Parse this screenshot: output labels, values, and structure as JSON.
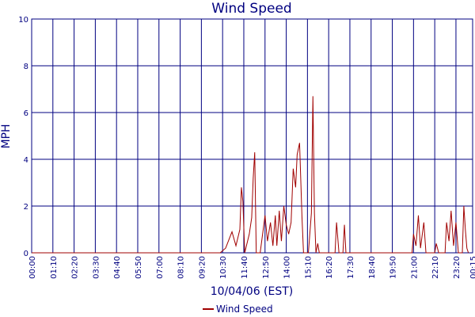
{
  "chart_data": {
    "type": "line",
    "title": "Wind Speed",
    "x_label": "10/04/06 (EST)",
    "y_label": "MPH",
    "x": [
      0,
      622,
      640,
      661,
      674,
      687,
      692,
      697,
      703,
      718,
      726,
      731,
      736,
      741,
      754,
      770,
      778,
      788,
      796,
      804,
      809,
      817,
      824,
      832,
      840,
      848,
      856,
      863,
      871,
      876,
      884,
      892,
      897,
      913,
      923,
      928,
      933,
      938,
      944,
      949,
      1001,
      1006,
      1014,
      1027,
      1032,
      1037,
      1255,
      1260,
      1268,
      1276,
      1283,
      1294,
      1301,
      1330,
      1335,
      1343,
      1364,
      1369,
      1377,
      1384,
      1392,
      1400,
      1408,
      1421,
      1426,
      1431,
      1436,
      1441
    ],
    "series": [
      {
        "name": "Wind Speed",
        "color": "#a00000",
        "values": [
          0,
          0,
          0.2,
          0.9,
          0.3,
          1.0,
          2.8,
          2.2,
          0,
          0.8,
          1.5,
          3.2,
          4.3,
          0,
          0,
          1.6,
          0.5,
          1.3,
          0.3,
          1.6,
          0.3,
          1.8,
          0.5,
          2.0,
          1.2,
          0.8,
          1.3,
          3.6,
          2.8,
          4.2,
          4.7,
          1.5,
          0,
          0,
          1.7,
          6.7,
          1.7,
          0,
          0.4,
          0,
          0,
          1.3,
          0,
          0,
          1.2,
          0,
          0,
          0.8,
          0.3,
          1.6,
          0.2,
          1.3,
          0,
          0,
          0.4,
          0,
          0,
          1.3,
          0.5,
          1.8,
          0.3,
          1.3,
          0,
          0,
          2.0,
          1.0,
          0.2,
          0
        ]
      }
    ],
    "xlim": [
      0,
      1455
    ],
    "xticks": [
      {
        "value": 0,
        "label": "00:00"
      },
      {
        "value": 70,
        "label": "01:10"
      },
      {
        "value": 140,
        "label": "02:20"
      },
      {
        "value": 210,
        "label": "03:30"
      },
      {
        "value": 280,
        "label": "04:40"
      },
      {
        "value": 350,
        "label": "05:50"
      },
      {
        "value": 420,
        "label": "07:00"
      },
      {
        "value": 490,
        "label": "08:10"
      },
      {
        "value": 560,
        "label": "09:20"
      },
      {
        "value": 630,
        "label": "10:30"
      },
      {
        "value": 700,
        "label": "11:40"
      },
      {
        "value": 770,
        "label": "12:50"
      },
      {
        "value": 840,
        "label": "14:00"
      },
      {
        "value": 910,
        "label": "15:10"
      },
      {
        "value": 980,
        "label": "16:20"
      },
      {
        "value": 1050,
        "label": "17:30"
      },
      {
        "value": 1120,
        "label": "18:40"
      },
      {
        "value": 1190,
        "label": "19:50"
      },
      {
        "value": 1260,
        "label": "21:00"
      },
      {
        "value": 1330,
        "label": "22:10"
      },
      {
        "value": 1400,
        "label": "23:20"
      },
      {
        "value": 1455,
        "label": "00:15"
      }
    ],
    "ylim": [
      0,
      10
    ],
    "yticks": [
      0,
      2,
      4,
      6,
      8,
      10
    ],
    "grid": true,
    "grid_color": "#000080",
    "legend": "bottom"
  }
}
